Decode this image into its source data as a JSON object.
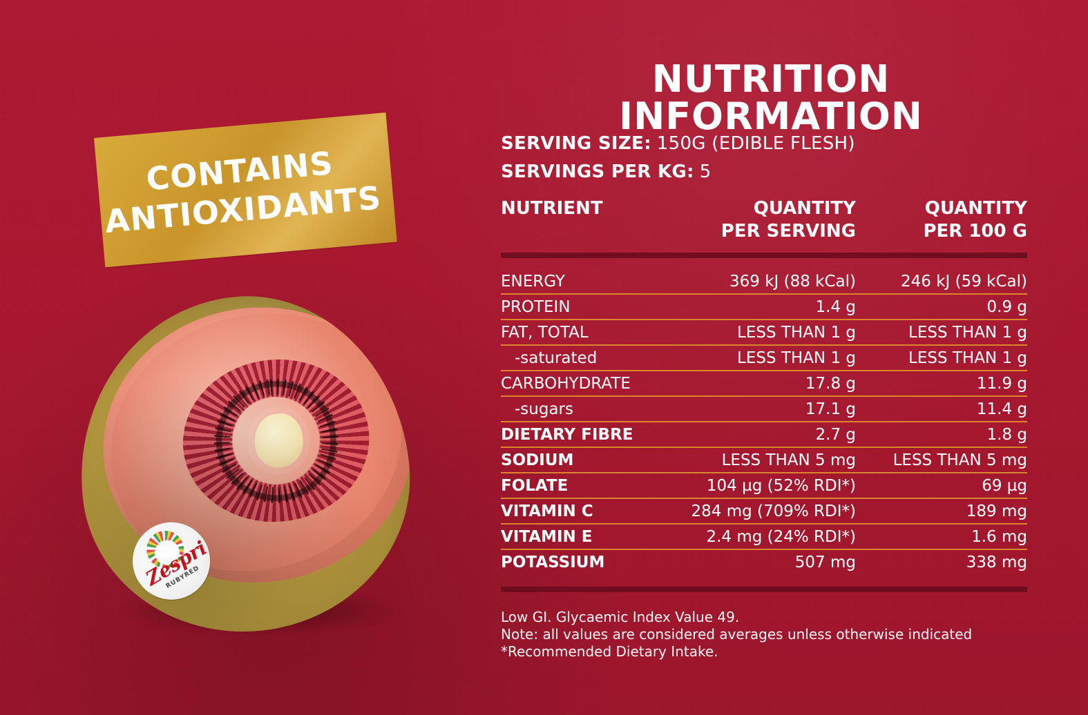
{
  "banner": {
    "line1": "CONTAINS",
    "line2": "ANTIOXIDANTS"
  },
  "sticker": {
    "brand": "Zespri",
    "sub": "RUBYRED"
  },
  "panel": {
    "title": "NUTRITION INFORMATION",
    "serving_size_label": "SERVING SIZE:",
    "serving_size_value": "150G (EDIBLE FLESH)",
    "servings_per_kg_label": "SERVINGS PER KG:",
    "servings_per_kg_value": "5",
    "headers": {
      "nutrient": "NUTRIENT",
      "per_serving": "QUANTITY\nPER SERVING",
      "per_100g": "QUANTITY\nPER 100 G"
    },
    "rows": [
      {
        "name": "ENERGY",
        "per_serving": "369 kJ (88 kCal)",
        "per_100g": "246 kJ (59 kCal)"
      },
      {
        "name": "PROTEIN",
        "per_serving": "1.4 g",
        "per_100g": "0.9 g"
      },
      {
        "name": "FAT, TOTAL",
        "per_serving": "LESS THAN 1 g",
        "per_100g": "LESS THAN 1 g"
      },
      {
        "name": "-saturated",
        "per_serving": "LESS THAN 1 g",
        "per_100g": "LESS THAN 1 g"
      },
      {
        "name": "CARBOHYDRATE",
        "per_serving": "17.8 g",
        "per_100g": "11.9 g"
      },
      {
        "name": "-sugars",
        "per_serving": "17.1 g",
        "per_100g": "11.4 g"
      },
      {
        "name": "DIETARY FIBRE",
        "per_serving": "2.7 g",
        "per_100g": "1.8 g"
      },
      {
        "name": "SODIUM",
        "per_serving": "LESS THAN 5 mg",
        "per_100g": "LESS THAN 5 mg"
      },
      {
        "name": "FOLATE",
        "per_serving": "104 µg (52% RDI*)",
        "per_100g": "69 µg"
      },
      {
        "name": "VITAMIN C",
        "per_serving": "284 mg (709% RDI*)",
        "per_100g": "189 mg"
      },
      {
        "name": "VITAMIN E",
        "per_serving": "2.4 mg (24% RDI*)",
        "per_100g": "1.6 mg"
      },
      {
        "name": "POTASSIUM",
        "per_serving": "507 mg",
        "per_100g": "338 mg"
      }
    ],
    "notes": [
      "Low GI. Glycaemic Index Value 49.",
      "Note: all values are considered averages unless otherwise indicated",
      "*Recommended Dietary Intake."
    ]
  }
}
